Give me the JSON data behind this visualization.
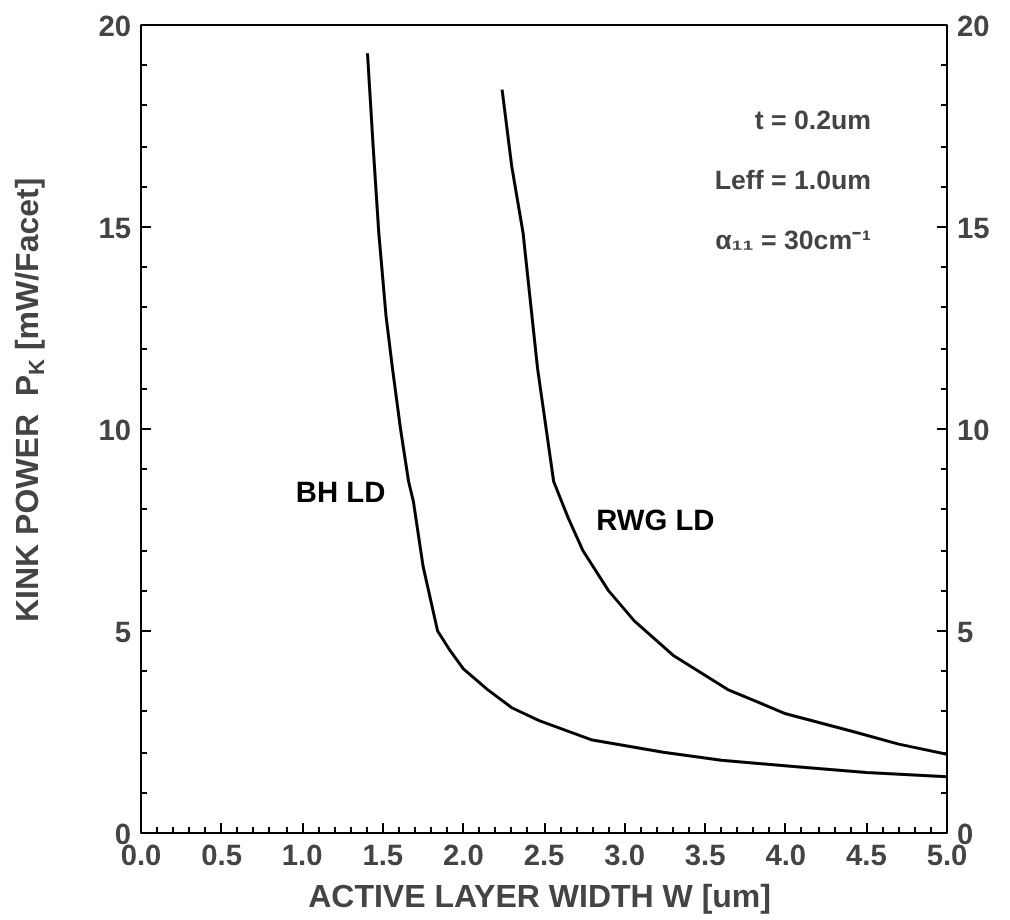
{
  "chart_data": {
    "type": "line",
    "xlabel": "ACTIVE LAYER WIDTH  W [um]",
    "ylabel": "KINK POWER  P$_{K}$ [mW/Facet]",
    "xlim": [
      0,
      5
    ],
    "xticks": [
      {
        "value": 0,
        "label": "0.0"
      },
      {
        "value": 0.5,
        "label": "0.5"
      },
      {
        "value": 1,
        "label": "1.0"
      },
      {
        "value": 1.5,
        "label": "1.5"
      },
      {
        "value": 2,
        "label": "2.0"
      },
      {
        "value": 2.5,
        "label": "2.5"
      },
      {
        "value": 3,
        "label": "3.0"
      },
      {
        "value": 3.5,
        "label": "3.5"
      },
      {
        "value": 4,
        "label": "4.0"
      },
      {
        "value": 4.5,
        "label": "4.5"
      },
      {
        "value": 5,
        "label": "5.0"
      }
    ],
    "ylim": [
      0,
      20
    ],
    "yticks": [
      0,
      5,
      10,
      15,
      20
    ],
    "y2lim": [
      0,
      20
    ],
    "y2ticks": [
      0,
      5,
      10,
      15,
      20
    ],
    "grid": false,
    "legend": false,
    "marker": "none",
    "line_style": "solid",
    "annotations": [
      "t = 0.2um",
      "Leff = 1.0um",
      "α₁₁ = 30cm⁻¹"
    ],
    "series": [
      {
        "name": "BH LD",
        "color": "#000000",
        "x": [
          1.405,
          1.44,
          1.475,
          1.52,
          1.56,
          1.61,
          1.66,
          1.69,
          1.75,
          1.84,
          1.92,
          2.0,
          2.15,
          2.3,
          2.47,
          2.8,
          3.24,
          3.6,
          4.03,
          4.5,
          5.0
        ],
        "values": [
          19.3,
          17.0,
          14.86,
          12.8,
          11.5,
          10.0,
          8.7,
          8.2,
          6.6,
          5.0,
          4.5,
          4.06,
          3.55,
          3.1,
          2.78,
          2.3,
          2.0,
          1.8,
          1.65,
          1.5,
          1.39
        ]
      },
      {
        "name": "RWG LD",
        "color": "#000000",
        "x": [
          2.24,
          2.3,
          2.37,
          2.46,
          2.56,
          2.65,
          2.74,
          2.9,
          3.06,
          3.3,
          3.64,
          4.0,
          4.41,
          4.7,
          5.0
        ],
        "values": [
          18.4,
          16.5,
          14.86,
          11.5,
          8.7,
          7.8,
          7.0,
          6.0,
          5.25,
          4.4,
          3.55,
          2.95,
          2.52,
          2.2,
          1.95
        ]
      }
    ]
  }
}
